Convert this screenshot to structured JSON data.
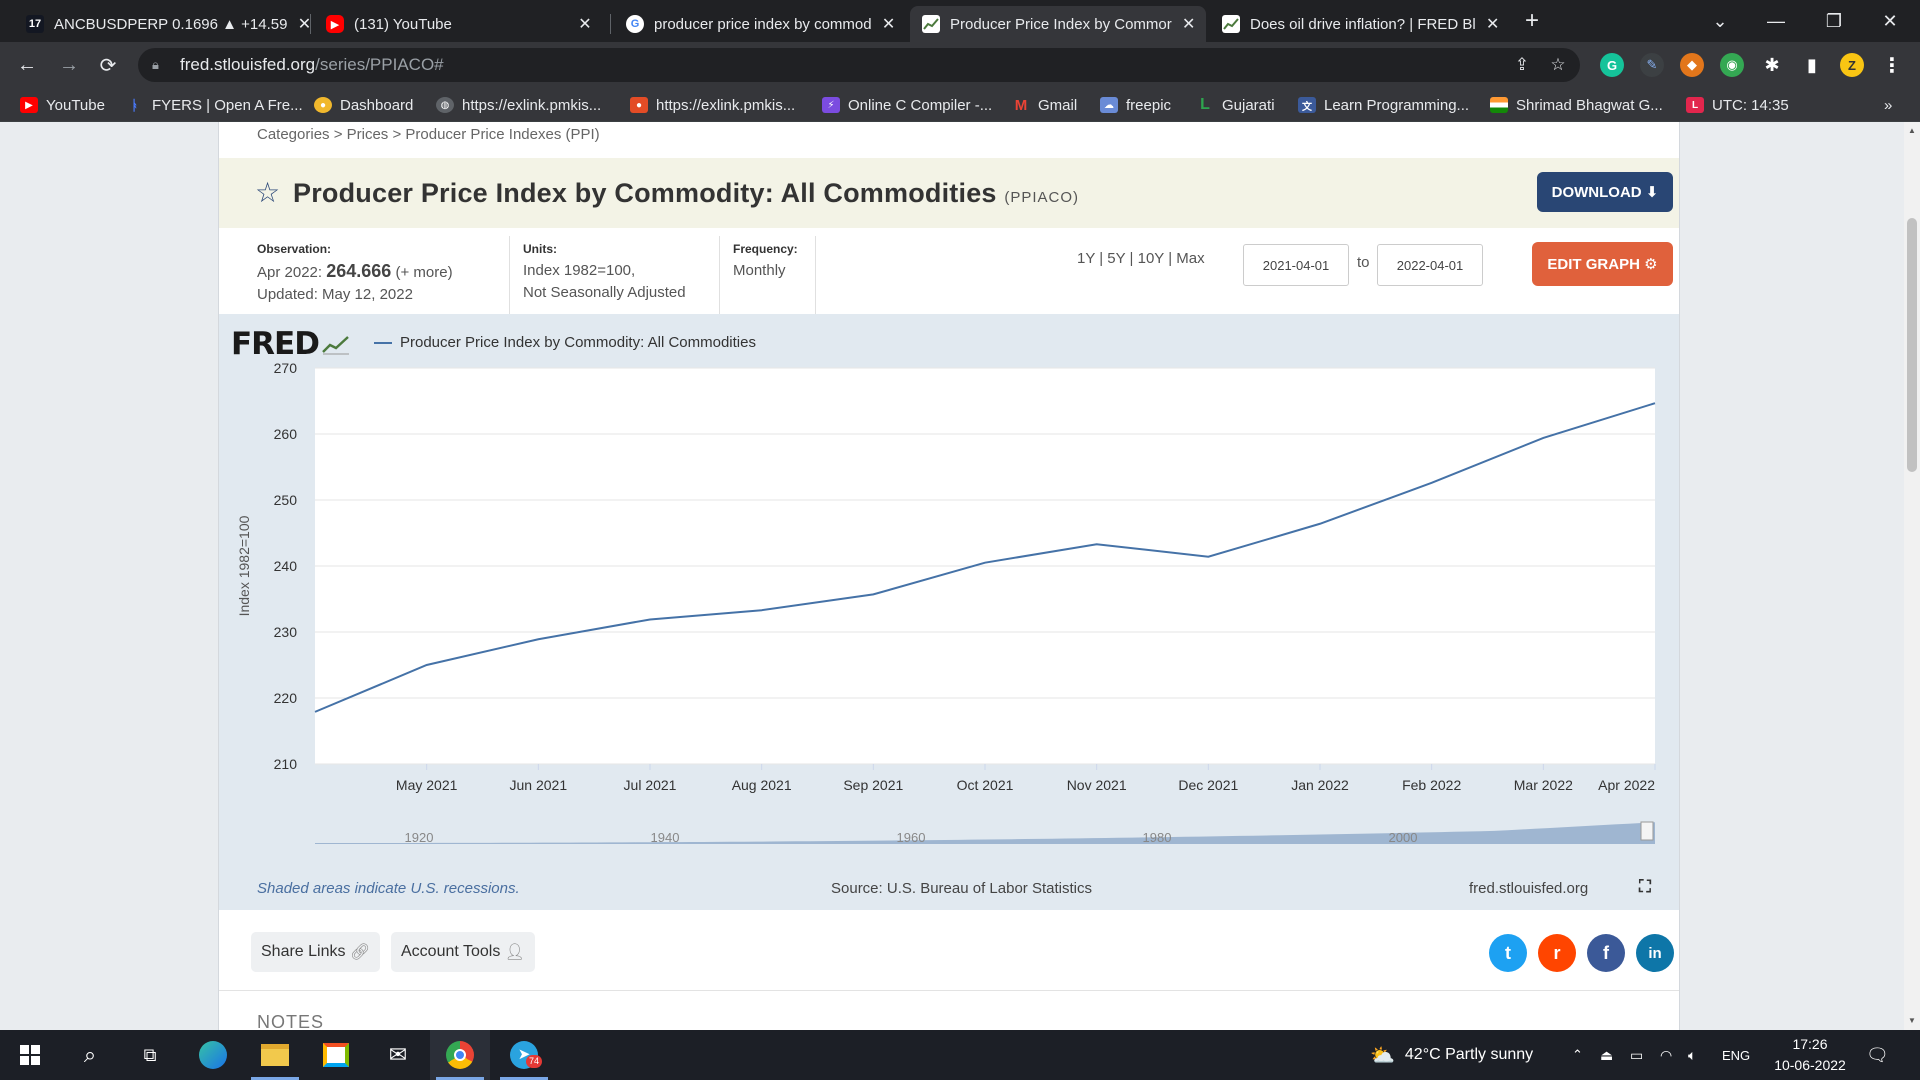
{
  "browser": {
    "tabs": [
      {
        "title": "ANCBUSDPERP 0.1696 ▲ +14.59",
        "icon": "tradingview-icon",
        "fav_text": "17",
        "fav_color": "#131722",
        "active": false
      },
      {
        "title": "(131) YouTube",
        "icon": "youtube-icon",
        "fav_text": "▶",
        "fav_color": "#ff0000",
        "active": false
      },
      {
        "title": "producer price index by commod",
        "icon": "google-icon",
        "fav_text": "G",
        "fav_color": "#ffffff",
        "active": false
      },
      {
        "title": "Producer Price Index by Commor",
        "icon": "fred-graph-icon",
        "fav_text": "",
        "fav_color": "#ffffff",
        "active": true
      },
      {
        "title": "Does oil drive inflation? | FRED Bl",
        "icon": "fred-graph-icon",
        "fav_text": "",
        "fav_color": "#ffffff",
        "active": false
      }
    ],
    "new_tab_symbol": "+",
    "window_controls": {
      "dropdown": "⌄",
      "minimize": "—",
      "restore": "❐",
      "close": "✕"
    },
    "url": {
      "host": "fred.stlouisfed.org",
      "path": "/series/PPIACO#"
    },
    "bookmarks": [
      {
        "label": "YouTube",
        "icon": "youtube-icon",
        "color": "#ff0000"
      },
      {
        "label": "FYERS | Open A Fre...",
        "icon": "fyers-icon",
        "color": "#1e5bd8"
      },
      {
        "label": "Dashboard",
        "icon": "dashboard-icon",
        "color": "#f1b82d"
      },
      {
        "label": "https://exlink.pmkis...",
        "icon": "globe-icon",
        "color": "#5f6368"
      },
      {
        "label": "https://exlink.pmkis...",
        "icon": "pmkisan-icon",
        "color": "#e34c26"
      },
      {
        "label": "Online C Compiler -...",
        "icon": "compiler-icon",
        "color": "#7b4ce0"
      },
      {
        "label": "Gmail",
        "icon": "gmail-icon",
        "color": "#ea4335"
      },
      {
        "label": "freepic",
        "icon": "freepic-icon",
        "color": "#6a8bd6"
      },
      {
        "label": "Gujarati",
        "icon": "gujarati-icon",
        "color": "#2ea44f"
      },
      {
        "label": "Learn Programming...",
        "icon": "translate-icon",
        "color": "#3b5a9a"
      },
      {
        "label": "Shrimad Bhagwat G...",
        "icon": "india-flag-icon",
        "color": "#ff9933"
      },
      {
        "label": "UTC: 14:35",
        "icon": "utc-icon",
        "color": "#e2264d"
      }
    ],
    "bookmarks_more": "»"
  },
  "page": {
    "breadcrumb": "Categories > Prices > Producer Price Indexes (PPI)",
    "title": "Producer Price Index by Commodity: All Commodities",
    "series_code": "(PPIACO)",
    "download_label": "DOWNLOAD",
    "observation": {
      "label": "Observation:",
      "date": "Apr 2022:",
      "value": "264.666",
      "more": "(+ more)",
      "updated": "Updated: May 12, 2022"
    },
    "units": {
      "label": "Units:",
      "line1": "Index 1982=100,",
      "line2": "Not Seasonally Adjusted"
    },
    "frequency": {
      "label": "Frequency:",
      "value": "Monthly"
    },
    "ranges": "1Y | 5Y | 10Y | Max",
    "date_from": "2021-04-01",
    "date_to": "2022-04-01",
    "to_label": "to",
    "edit_graph_label": "EDIT GRAPH",
    "fred_logo": "FRED",
    "footer": {
      "recession_note": "Shaded areas indicate U.S. recessions.",
      "source": "Source: U.S. Bureau of Labor Statistics",
      "site": "fred.stlouisfed.org"
    },
    "share_links_label": "Share Links",
    "account_tools_label": "Account Tools",
    "notes_heading": "NOTES",
    "social": [
      {
        "name": "twitter-icon",
        "glyph": "t",
        "color": "#1da1f2"
      },
      {
        "name": "reddit-icon",
        "glyph": "r",
        "color": "#ff4500"
      },
      {
        "name": "facebook-icon",
        "glyph": "f",
        "color": "#3b5998"
      },
      {
        "name": "linkedin-icon",
        "glyph": "in",
        "color": "#0e76a8"
      }
    ]
  },
  "chart_data": {
    "type": "line",
    "title": "",
    "legend": "Producer Price Index by Commodity: All Commodities",
    "ylabel": "Index 1982=100",
    "xlabel": "",
    "ylim": [
      210,
      270
    ],
    "yticks": [
      210,
      220,
      230,
      240,
      250,
      260,
      270
    ],
    "x": [
      "Apr 2021",
      "May 2021",
      "Jun 2021",
      "Jul 2021",
      "Aug 2021",
      "Sep 2021",
      "Oct 2021",
      "Nov 2021",
      "Dec 2021",
      "Jan 2022",
      "Feb 2022",
      "Mar 2022",
      "Apr 2022"
    ],
    "xtick_labels": [
      "May 2021",
      "Jun 2021",
      "Jul 2021",
      "Aug 2021",
      "Sep 2021",
      "Oct 2021",
      "Nov 2021",
      "Dec 2021",
      "Jan 2022",
      "Feb 2022",
      "Mar 2022",
      "Apr 2022"
    ],
    "series": [
      {
        "name": "Producer Price Index by Commodity: All Commodities",
        "color": "#4572a7",
        "values": [
          217.9,
          225.0,
          228.9,
          231.9,
          233.3,
          235.7,
          240.5,
          243.3,
          241.4,
          246.4,
          252.6,
          259.4,
          264.666
        ]
      }
    ],
    "navigator_years": [
      "1920",
      "1940",
      "1960",
      "1980",
      "2000"
    ],
    "grid": true,
    "legend_position": "top-left"
  },
  "taskbar": {
    "weather": "42°C  Partly sunny",
    "language": "ENG",
    "time": "17:26",
    "date": "10-06-2022",
    "telegram_badge": "74"
  }
}
